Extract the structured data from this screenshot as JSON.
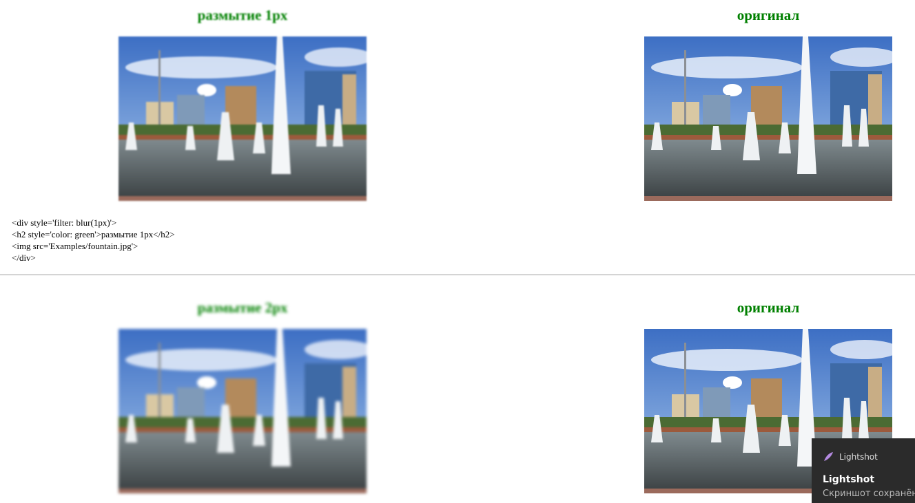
{
  "rows": [
    {
      "blurred": {
        "title": "размытие 1px"
      },
      "original": {
        "title": "оригинал"
      },
      "code": [
        "<div style='filter: blur(1px)'>",
        "<h2 style='color: green'>размытие 1px</h2>",
        "<img src='Examples/fountain.jpg'>",
        "</div>"
      ]
    },
    {
      "blurred": {
        "title": "размытие 2px"
      },
      "original": {
        "title": "оригинал"
      }
    }
  ],
  "notification": {
    "app": "Lightshot",
    "title": "Lightshot",
    "message": "Скриншот сохранён"
  }
}
